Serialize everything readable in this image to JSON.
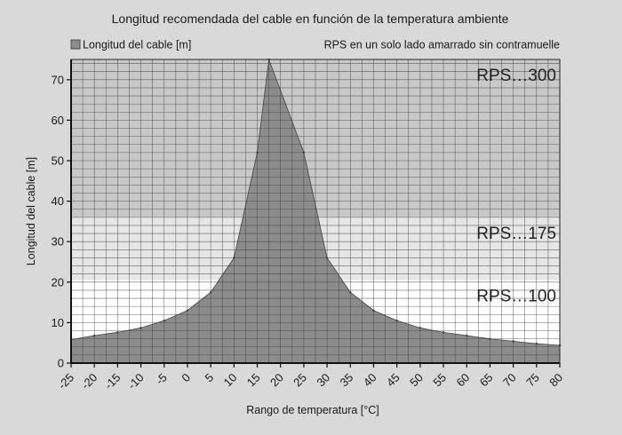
{
  "chart_data": {
    "type": "area",
    "title": "Longitud recomendada del cable en función de la temperatura ambiente",
    "xlabel": "Rango de temperatura [°C]",
    "ylabel": "Longitud del cable [m]",
    "legend": {
      "series_label": "Longitud del cable [m]",
      "note": "RPS en un solo lado amarrado sin contramuelle",
      "placement": "top"
    },
    "xlim": [
      -25,
      80
    ],
    "ylim": [
      0,
      75
    ],
    "x_ticks": [
      -25,
      -20,
      -15,
      -10,
      -5,
      0,
      5,
      10,
      15,
      20,
      25,
      30,
      35,
      40,
      45,
      50,
      55,
      60,
      65,
      70,
      75,
      80
    ],
    "y_ticks": [
      0,
      10,
      20,
      30,
      40,
      50,
      60,
      70
    ],
    "grid": true,
    "zones": [
      {
        "label": "RPS…300",
        "ymin": 36,
        "ymax": 75,
        "color": "#c8c8c8"
      },
      {
        "label": "RPS…175",
        "ymin": 20.5,
        "ymax": 36,
        "color": "#e6e6e6"
      },
      {
        "label": "RPS…100",
        "ymin": 0,
        "ymax": 20.5,
        "color": "#ffffff"
      }
    ],
    "series": [
      {
        "name": "Longitud del cable [m]",
        "color": "#8c8c8c",
        "x": [
          -25,
          -20,
          -15,
          -10,
          -5,
          0,
          5,
          10,
          15,
          17.5,
          25,
          30,
          35,
          40,
          45,
          50,
          55,
          60,
          65,
          70,
          75,
          80
        ],
        "values": [
          5.8,
          6.8,
          7.6,
          8.7,
          10.5,
          13,
          17.5,
          26,
          52,
          75,
          52,
          26,
          17.5,
          13,
          10.5,
          8.7,
          7.6,
          6.8,
          6.0,
          5.4,
          4.8,
          4.4
        ]
      }
    ]
  }
}
